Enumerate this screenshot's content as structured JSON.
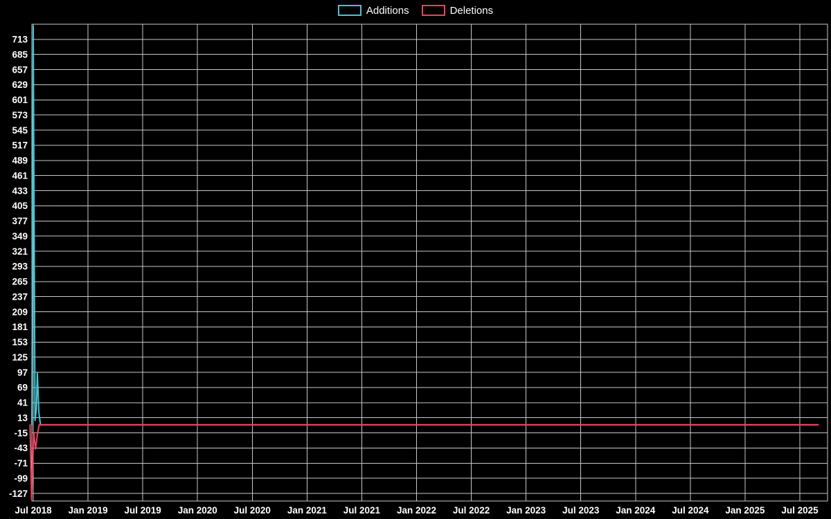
{
  "chart_data": {
    "type": "line",
    "title": "",
    "x_tick_labels": [
      "Jul 2018",
      "Jan 2019",
      "Jul 2019",
      "Jan 2020",
      "Jul 2020",
      "Jan 2021",
      "Jul 2021",
      "Jan 2022",
      "Jul 2022",
      "Jan 2023",
      "Jul 2023",
      "Jan 2024",
      "Jul 2024",
      "Jan 2025",
      "Jul 2025"
    ],
    "x_tick_months": [
      0,
      6,
      12,
      18,
      24,
      30,
      36,
      42,
      48,
      54,
      60,
      66,
      72,
      78,
      84
    ],
    "y_ticks": [
      713,
      685,
      657,
      629,
      601,
      573,
      545,
      517,
      489,
      461,
      433,
      405,
      377,
      349,
      321,
      293,
      265,
      237,
      209,
      181,
      153,
      125,
      97,
      69,
      41,
      13,
      -15,
      -43,
      -71,
      -99,
      -127
    ],
    "y_domain": [
      -141,
      741
    ],
    "x_domain_months": [
      -0.4,
      87
    ],
    "grid": true,
    "legend_position": "top-center",
    "background": "#000000",
    "grid_color": "#c9c9c9",
    "text_color": "#ffffff",
    "series": [
      {
        "name": "Additions",
        "color": "#45c5d5",
        "points": [
          [
            -0.15,
            0
          ],
          [
            0,
            738
          ],
          [
            0.2,
            8
          ],
          [
            0.35,
            30
          ],
          [
            0.45,
            97
          ],
          [
            0.62,
            22
          ],
          [
            0.8,
            0
          ],
          [
            2,
            0
          ],
          [
            12,
            0
          ],
          [
            24,
            0
          ],
          [
            36,
            0
          ],
          [
            48,
            0
          ],
          [
            60,
            0
          ],
          [
            72,
            0
          ],
          [
            86,
            0
          ]
        ]
      },
      {
        "name": "Deletions",
        "color": "#ee4260",
        "points": [
          [
            -0.35,
            0
          ],
          [
            -0.18,
            -138
          ],
          [
            0.05,
            -14
          ],
          [
            0.25,
            -45
          ],
          [
            0.45,
            -18
          ],
          [
            0.65,
            0
          ],
          [
            2,
            0
          ],
          [
            12,
            0
          ],
          [
            24,
            0
          ],
          [
            36,
            0
          ],
          [
            48,
            0
          ],
          [
            60,
            0
          ],
          [
            72,
            0
          ],
          [
            86,
            0
          ]
        ]
      }
    ]
  }
}
